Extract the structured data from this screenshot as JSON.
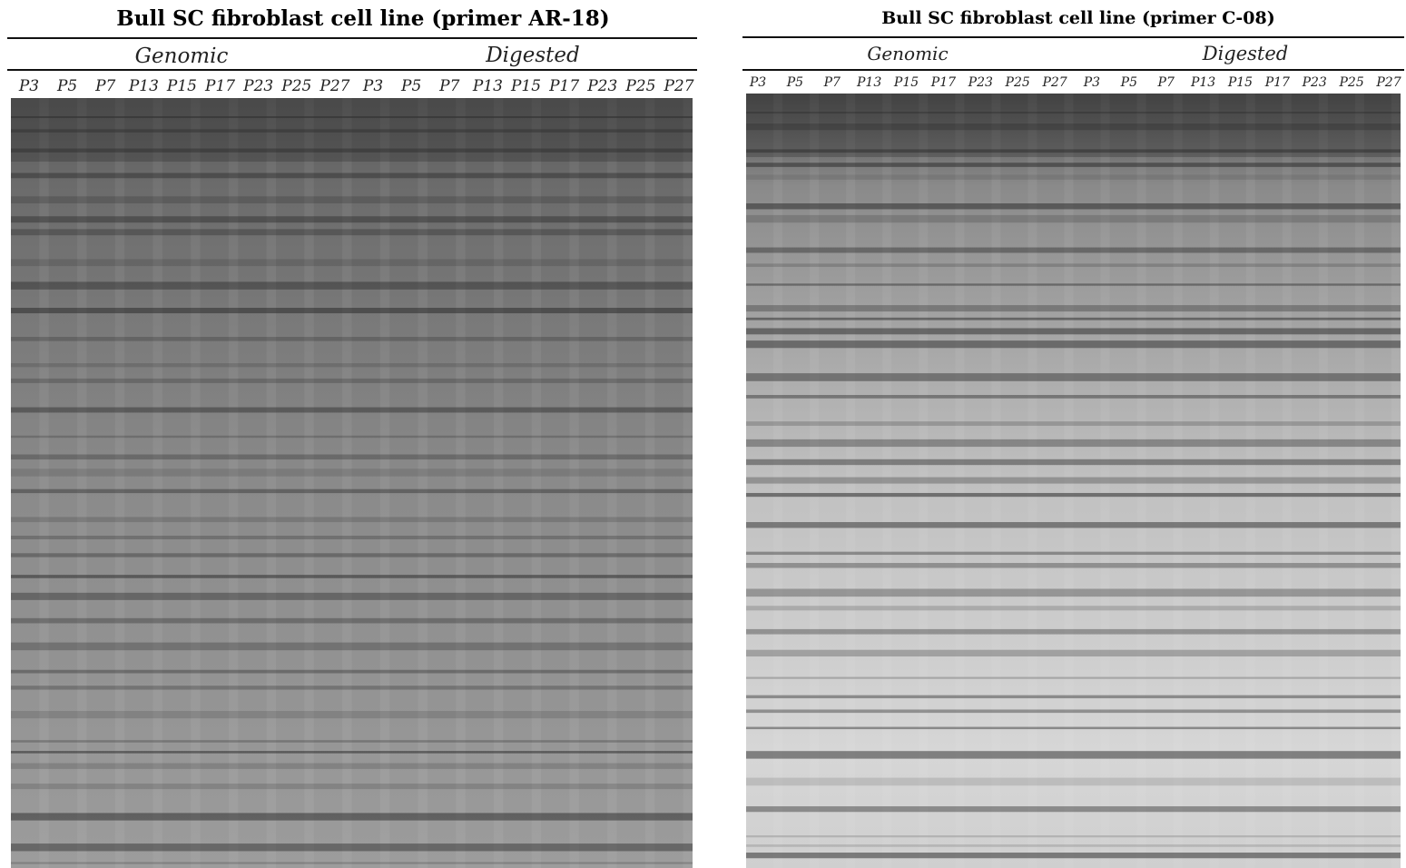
{
  "panels": [
    {
      "title": "Bull SC fibroblast cell line (primer AR-18)",
      "groups": [
        "Genomic",
        "Digested"
      ],
      "lanes": [
        "P3",
        "P5",
        "P7",
        "P13",
        "P15",
        "P17",
        "P23",
        "P25",
        "P27",
        "P3",
        "P5",
        "P7",
        "P13",
        "P15",
        "P17",
        "P23",
        "P25",
        "P27"
      ]
    },
    {
      "title": "Bull SC fibroblast cell line (primer C-08)",
      "groups": [
        "Genomic",
        "Digested"
      ],
      "lanes": [
        "P3",
        "P5",
        "P7",
        "P13",
        "P15",
        "P17",
        "P23",
        "P25",
        "P27",
        "P3",
        "P5",
        "P7",
        "P13",
        "P15",
        "P17",
        "P23",
        "P25",
        "P27"
      ]
    }
  ]
}
